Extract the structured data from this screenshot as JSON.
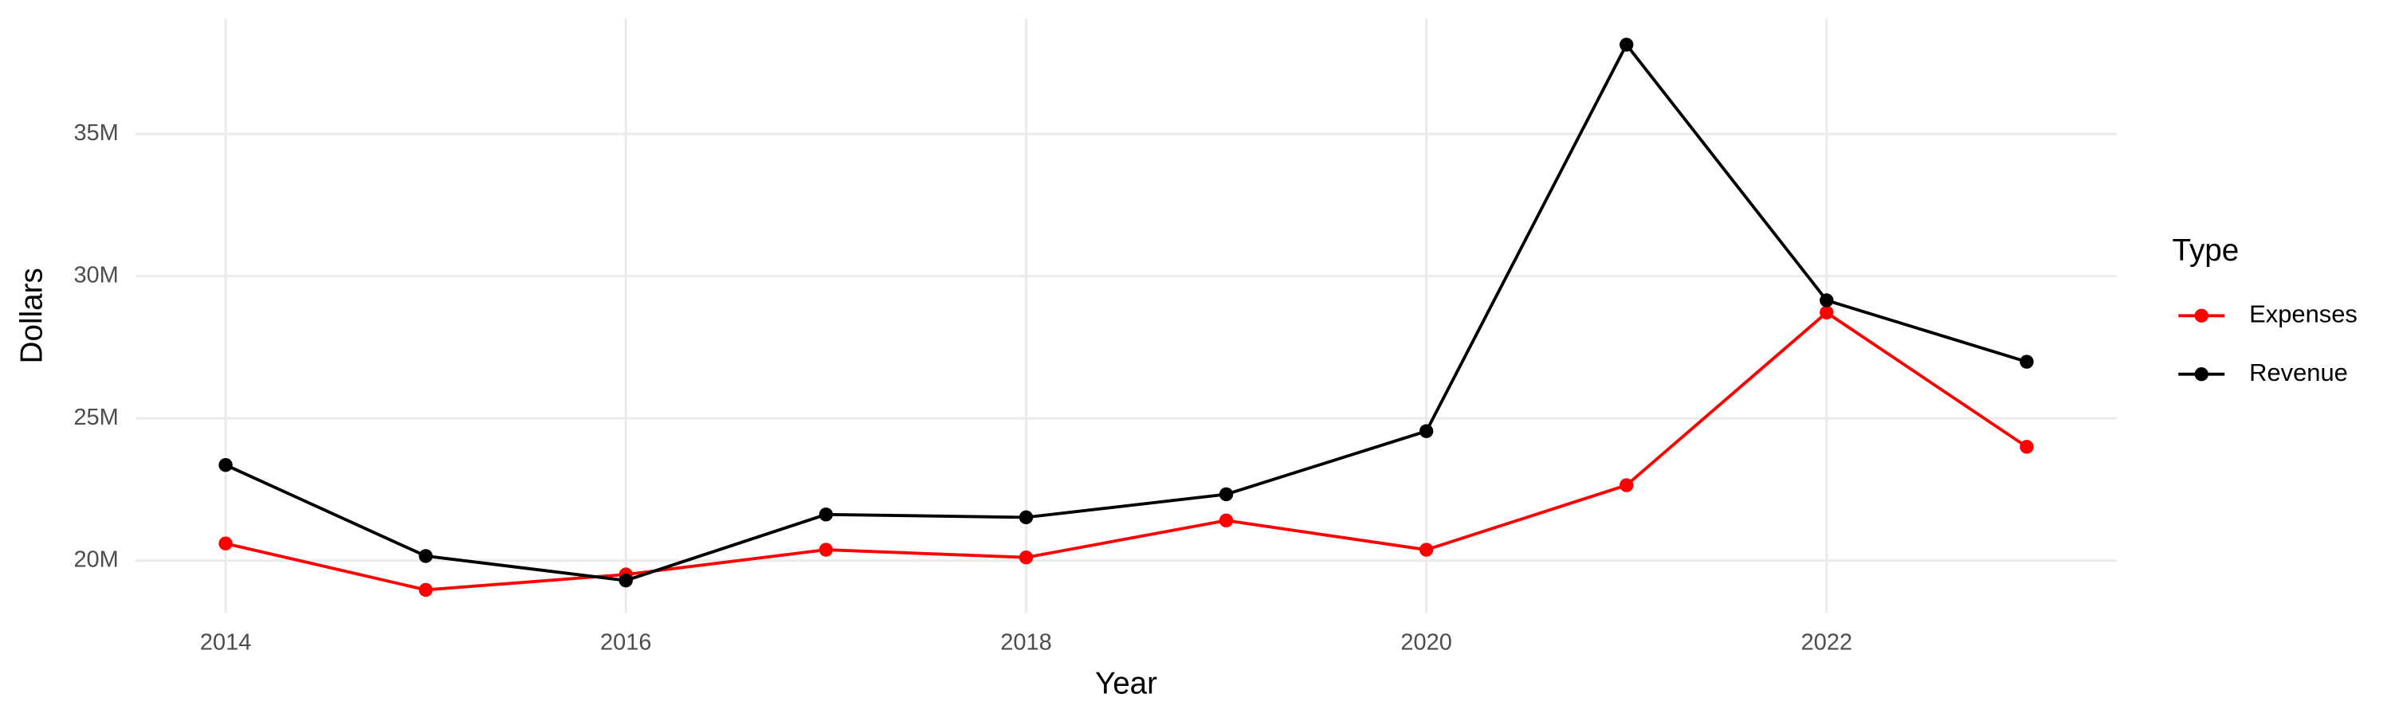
{
  "chart_data": {
    "type": "line",
    "x_label": "Year",
    "y_label": "Dollars",
    "legend_title": "Type",
    "x": [
      2014,
      2015,
      2016,
      2017,
      2018,
      2019,
      2020,
      2021,
      2022,
      2023
    ],
    "series": [
      {
        "name": "Expenses",
        "color": "#ff0000",
        "values": [
          20600000,
          18970000,
          19510000,
          20380000,
          20110000,
          21410000,
          20380000,
          22650000,
          28720000,
          24000000
        ]
      },
      {
        "name": "Revenue",
        "color": "#000000",
        "values": [
          23360000,
          20160000,
          19300000,
          21620000,
          21520000,
          22330000,
          24550000,
          38140000,
          29150000,
          26990000
        ]
      }
    ],
    "xlim": [
      2013.55,
      2023.45
    ],
    "xticks": [
      2014,
      2016,
      2018,
      2020,
      2022
    ],
    "ylim": [
      18160000,
      39060000
    ],
    "yticks": [
      {
        "value": 20000000,
        "label": "20M"
      },
      {
        "value": 25000000,
        "label": "25M"
      },
      {
        "value": 30000000,
        "label": "30M"
      },
      {
        "value": 35000000,
        "label": "35M"
      }
    ],
    "grid": true,
    "legend": "right"
  }
}
